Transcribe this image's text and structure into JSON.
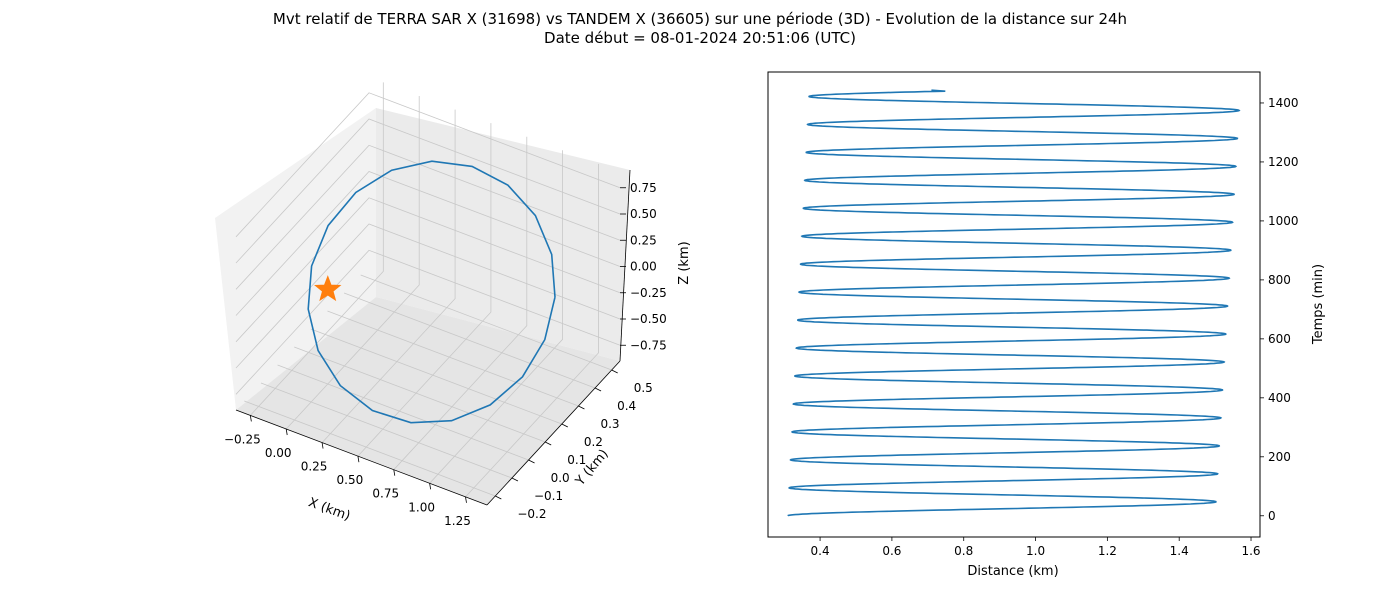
{
  "figure": {
    "title_line1": "Mvt relatif de TERRA SAR X (31698) vs TANDEM X (36605) sur une période (3D) - Evolution de la distance sur 24h",
    "title_line2": "Date début = 08-01-2024 20:51:06 (UTC)"
  },
  "chart_data": [
    {
      "type": "line3d",
      "xlabel": "X (km)",
      "ylabel": "Y (km)",
      "zlabel": "Z (km)",
      "x_ticks": [
        "−0.25",
        "0.00",
        "0.25",
        "0.50",
        "0.75",
        "1.00",
        "1.25"
      ],
      "y_ticks": [
        "−0.2",
        "−0.1",
        "0.0",
        "0.1",
        "0.2",
        "0.3",
        "0.4",
        "0.5"
      ],
      "z_ticks": [
        "−0.75",
        "−0.50",
        "−0.25",
        "0.00",
        "0.25",
        "0.50",
        "0.75"
      ],
      "xlim": [
        -0.35,
        1.4
      ],
      "ylim": [
        -0.25,
        0.55
      ],
      "zlim": [
        -0.9,
        0.9
      ],
      "grid": true,
      "series": [
        {
          "color": "#1f77b4",
          "description": "closed relative-motion ellipse",
          "center": [
            0.55,
            0.15,
            0.0
          ],
          "semi_axis_x": 0.8,
          "semi_axis_y": 0.28,
          "semi_axis_z": 0.7
        }
      ],
      "markers": [
        {
          "shape": "star",
          "color": "#ff7f0e",
          "x": 0.0,
          "y": 0.0,
          "z": 0.0
        }
      ]
    },
    {
      "type": "line",
      "xlabel": "Distance (km)",
      "ylabel": "Temps (min)",
      "x_ticks": [
        "0.4",
        "0.6",
        "0.8",
        "1.0",
        "1.2",
        "1.4",
        "1.6"
      ],
      "y_ticks": [
        "0",
        "200",
        "400",
        "600",
        "800",
        "1000",
        "1200",
        "1400"
      ],
      "xlim": [
        0.255,
        1.625
      ],
      "ylim": [
        -72,
        1505
      ],
      "grid": false,
      "series": [
        {
          "color": "#1f77b4",
          "time_start_min": 0,
          "time_end_min": 1440,
          "orbit_period_min": 94.8,
          "distance_min_start_km": 0.31,
          "distance_min_end_km": 0.37,
          "distance_max_start_km": 1.5,
          "distance_max_end_km": 1.57,
          "final_value_km": 0.71
        }
      ]
    }
  ]
}
